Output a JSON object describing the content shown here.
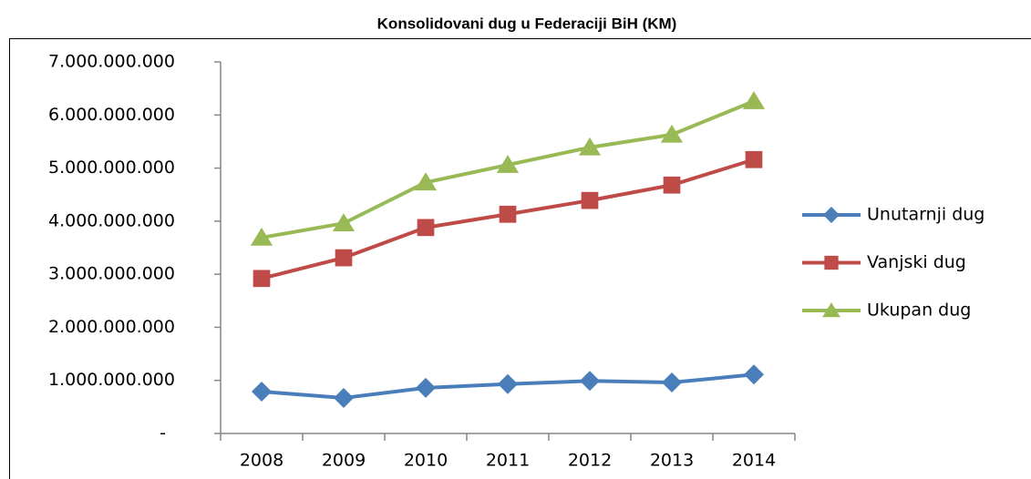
{
  "chart_data": {
    "type": "line",
    "title": "Konsolidovani dug u Federaciji BiH (KM)",
    "categories": [
      "2008",
      "2009",
      "2010",
      "2011",
      "2012",
      "2013",
      "2014"
    ],
    "series": [
      {
        "name": "Unutarnji dug",
        "color": "#4a7ebb",
        "marker": "diamond",
        "values": [
          790000000,
          670000000,
          860000000,
          930000000,
          990000000,
          960000000,
          1110000000
        ]
      },
      {
        "name": "Vanjski dug",
        "color": "#be4b48",
        "marker": "square",
        "values": [
          2920000000,
          3310000000,
          3880000000,
          4130000000,
          4390000000,
          4680000000,
          5160000000
        ]
      },
      {
        "name": "Ukupan dug",
        "color": "#98b954",
        "marker": "triangle",
        "values": [
          3690000000,
          3960000000,
          4730000000,
          5060000000,
          5390000000,
          5630000000,
          6260000000
        ]
      }
    ],
    "ylim": [
      0,
      7000000000
    ],
    "yticks": [
      {
        "value": 0,
        "label": "-"
      },
      {
        "value": 1000000000,
        "label": "1.000.000.000"
      },
      {
        "value": 2000000000,
        "label": "2.000.000.000"
      },
      {
        "value": 3000000000,
        "label": "3.000.000.000"
      },
      {
        "value": 4000000000,
        "label": "4.000.000.000"
      },
      {
        "value": 5000000000,
        "label": "5.000.000.000"
      },
      {
        "value": 6000000000,
        "label": "6.000.000.000"
      },
      {
        "value": 7000000000,
        "label": "7.000.000.000"
      }
    ],
    "grid": false,
    "legend": "right"
  }
}
